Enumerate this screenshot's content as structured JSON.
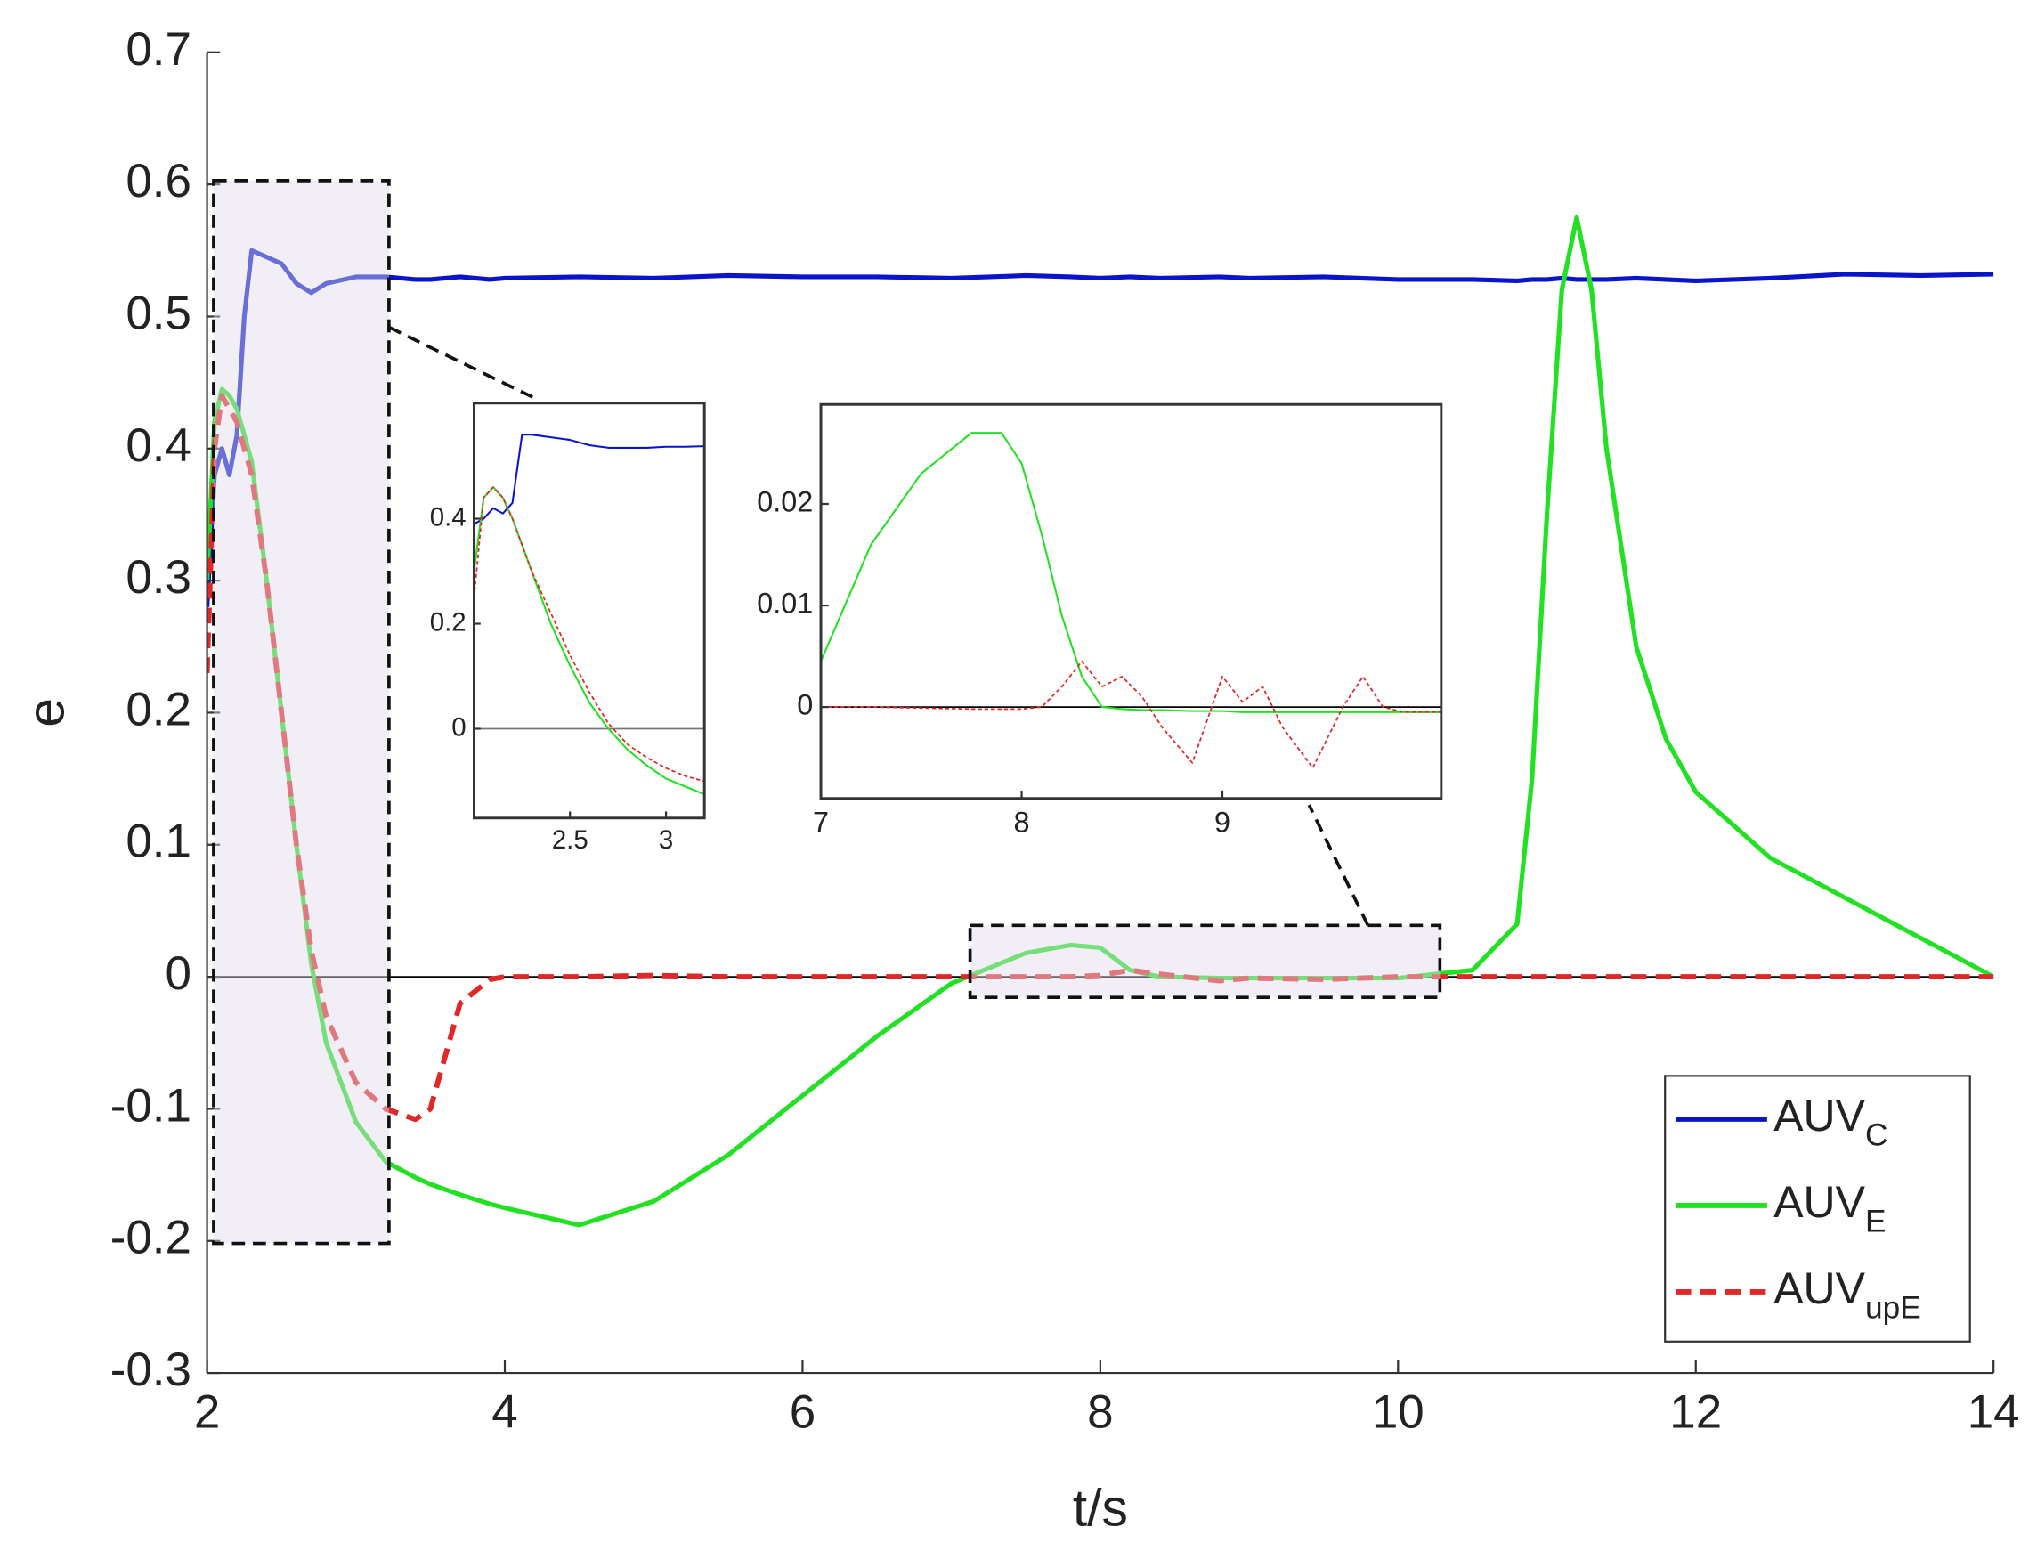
{
  "chart_data": [
    {
      "type": "line",
      "xlabel": "t/s",
      "ylabel": "e",
      "x": [
        2,
        2.05,
        2.1,
        2.15,
        2.2,
        2.25,
        2.3,
        2.4,
        2.5,
        2.6,
        2.7,
        2.8,
        3,
        3.2,
        3.4,
        3.5,
        3.6,
        3.7,
        3.9,
        4,
        4.5,
        5,
        5.5,
        6,
        6.5,
        7,
        7.5,
        7.8,
        8,
        8.2,
        8.4,
        8.8,
        9,
        9.5,
        10,
        10.5,
        10.8,
        10.9,
        11,
        11.1,
        11.2,
        11.3,
        11.4,
        11.6,
        11.8,
        12,
        12.5,
        13,
        13.5,
        14
      ],
      "xlim": [
        2,
        14
      ],
      "xticks": [
        2,
        4,
        6,
        8,
        10,
        12,
        14
      ],
      "ylim": [
        -0.3,
        0.7
      ],
      "yticks": [
        -0.3,
        -0.2,
        -0.1,
        0,
        0.1,
        0.2,
        0.3,
        0.4,
        0.5,
        0.6,
        0.7
      ],
      "legend": "lower right",
      "series": [
        {
          "name": "AUV",
          "name_sub": "C",
          "color": "#0a14c8",
          "linestyle": "solid",
          "values": [
            0.28,
            0.38,
            0.4,
            0.38,
            0.41,
            0.5,
            0.55,
            0.545,
            0.54,
            0.525,
            0.518,
            0.525,
            0.53,
            0.53,
            0.528,
            0.528,
            0.529,
            0.53,
            0.528,
            0.529,
            0.53,
            0.529,
            0.531,
            0.53,
            0.53,
            0.529,
            0.531,
            0.53,
            0.529,
            0.53,
            0.529,
            0.53,
            0.529,
            0.53,
            0.528,
            0.528,
            0.527,
            0.528,
            0.528,
            0.529,
            0.528,
            0.528,
            0.528,
            0.529,
            0.528,
            0.527,
            0.529,
            0.532,
            0.531,
            0.532
          ]
        },
        {
          "name": "AUV",
          "name_sub": "E",
          "color": "#22e022",
          "linestyle": "solid",
          "values": [
            0.3,
            0.42,
            0.445,
            0.44,
            0.43,
            0.41,
            0.39,
            0.3,
            0.2,
            0.1,
            0.01,
            -0.05,
            -0.11,
            -0.14,
            -0.152,
            -0.157,
            -0.161,
            -0.165,
            -0.172,
            -0.175,
            -0.188,
            -0.17,
            -0.135,
            -0.09,
            -0.045,
            -0.005,
            0.018,
            0.024,
            0.022,
            0.005,
            0,
            -0.001,
            -0.001,
            -0.001,
            -0.001,
            0.005,
            0.04,
            0.15,
            0.35,
            0.52,
            0.575,
            0.52,
            0.4,
            0.25,
            0.18,
            0.14,
            0.09,
            0.06,
            0.03,
            0
          ]
        },
        {
          "name": "AUV",
          "name_sub": "upE",
          "color": "#e02828",
          "linestyle": "dashed",
          "values": [
            0.23,
            0.4,
            0.44,
            0.43,
            0.42,
            0.4,
            0.38,
            0.3,
            0.2,
            0.1,
            0.02,
            -0.03,
            -0.08,
            -0.1,
            -0.108,
            -0.1,
            -0.06,
            -0.02,
            -0.002,
            0,
            0,
            0.001,
            0,
            0,
            0,
            0,
            0,
            0,
            0.001,
            0.005,
            0.002,
            -0.003,
            -0.001,
            -0.002,
            0,
            0,
            0,
            0,
            0,
            0,
            0,
            0,
            0,
            0,
            0,
            0,
            0,
            0,
            0,
            0
          ]
        }
      ]
    },
    {
      "type": "line",
      "x": [
        2,
        2.05,
        2.1,
        2.15,
        2.2,
        2.25,
        2.3,
        2.4,
        2.5,
        2.6,
        2.7,
        2.8,
        2.9,
        3,
        3.1,
        3.2
      ],
      "xlim": [
        2,
        3.2
      ],
      "xticks": [
        2.5,
        3
      ],
      "ylim": [
        -0.17,
        0.62
      ],
      "yticks": [
        0,
        0.2,
        0.4
      ],
      "series": [
        {
          "color": "#0a14c8",
          "values": [
            0.39,
            0.4,
            0.42,
            0.41,
            0.43,
            0.56,
            0.56,
            0.555,
            0.55,
            0.54,
            0.535,
            0.535,
            0.535,
            0.537,
            0.537,
            0.538
          ]
        },
        {
          "color": "#22e022",
          "values": [
            0.3,
            0.44,
            0.46,
            0.44,
            0.4,
            0.35,
            0.3,
            0.2,
            0.12,
            0.05,
            0,
            -0.04,
            -0.07,
            -0.095,
            -0.11,
            -0.125
          ]
        },
        {
          "color": "#e02828",
          "linestyle": "dashed",
          "values": [
            0.25,
            0.44,
            0.46,
            0.44,
            0.4,
            0.35,
            0.3,
            0.22,
            0.14,
            0.07,
            0.01,
            -0.03,
            -0.055,
            -0.075,
            -0.09,
            -0.1
          ]
        }
      ]
    },
    {
      "type": "line",
      "x": [
        7,
        7.25,
        7.5,
        7.75,
        7.9,
        8,
        8.1,
        8.2,
        8.3,
        8.4,
        8.5,
        8.6,
        8.7,
        8.85,
        9,
        9.1,
        9.2,
        9.3,
        9.45,
        9.6,
        9.7,
        9.8,
        9.9,
        10.09
      ],
      "xlim": [
        7,
        10.09
      ],
      "xticks": [
        7,
        8,
        9
      ],
      "ylim": [
        -0.009,
        0.0298
      ],
      "yticks": [
        0,
        0.01,
        0.02
      ],
      "series": [
        {
          "color": "#22e022",
          "values": [
            0.0045,
            0.016,
            0.023,
            0.027,
            0.027,
            0.024,
            0.017,
            0.009,
            0.003,
            0,
            -0.0002,
            -0.0003,
            -0.0003,
            -0.0004,
            -0.0004,
            -0.0005,
            -0.0005,
            -0.0005,
            -0.0005,
            -0.0005,
            -0.0005,
            -0.0005,
            -0.0005,
            -0.0005
          ]
        },
        {
          "color": "#e02828",
          "linestyle": "dashed",
          "values": [
            0,
            0,
            -0.0001,
            -0.0002,
            -0.0002,
            -0.0002,
            0,
            0.002,
            0.0045,
            0.002,
            0.003,
            0.001,
            -0.002,
            -0.0055,
            0.003,
            0.0005,
            0.002,
            -0.002,
            -0.006,
            0,
            0.003,
            0,
            -0.0005,
            -0.0005
          ]
        }
      ]
    }
  ]
}
